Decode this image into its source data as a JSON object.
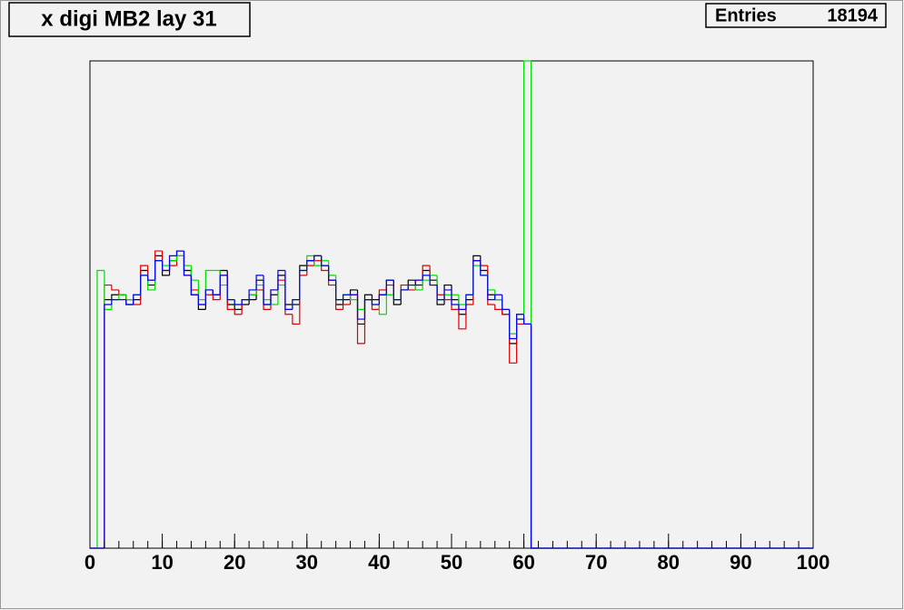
{
  "chart_data": {
    "type": "histogram",
    "title": "x digi MB2 lay 31",
    "stats": {
      "label": "Entries",
      "value": 18194
    },
    "bins": [
      0,
      1,
      2,
      3,
      4,
      5,
      6,
      7,
      8,
      9,
      10,
      11,
      12,
      13,
      14,
      15,
      16,
      17,
      18,
      19,
      20,
      21,
      22,
      23,
      24,
      25,
      26,
      27,
      28,
      29,
      30,
      31,
      32,
      33,
      34,
      35,
      36,
      37,
      38,
      39,
      40,
      41,
      42,
      43,
      44,
      45,
      46,
      47,
      48,
      49,
      50,
      51,
      52,
      53,
      54,
      55,
      56,
      57,
      58,
      59,
      60,
      61,
      62,
      63,
      64,
      65,
      66,
      67,
      68,
      69,
      70,
      71,
      72,
      73,
      74,
      75,
      76,
      77,
      78,
      79,
      80,
      81,
      82,
      83,
      84,
      85,
      86,
      87,
      88,
      89,
      90,
      91,
      92,
      93,
      94,
      95,
      96,
      97,
      98,
      99,
      100
    ],
    "xlim": [
      0,
      100
    ],
    "xticks": [
      0,
      10,
      20,
      30,
      40,
      50,
      60,
      70,
      80,
      90,
      100
    ],
    "ylim": [
      0,
      100
    ],
    "series": [
      {
        "name": "black",
        "color": "#000000",
        "values": [
          0,
          0,
          51,
          52,
          52,
          50,
          51,
          57,
          54,
          60,
          56,
          59,
          61,
          57,
          52,
          49,
          53,
          52,
          57,
          50,
          49,
          50,
          51,
          55,
          50,
          52,
          56,
          50,
          50,
          58,
          59,
          60,
          58,
          55,
          50,
          51,
          53,
          46,
          52,
          51,
          52,
          55,
          50,
          53,
          55,
          54,
          57,
          55,
          50,
          54,
          51,
          48,
          51,
          60,
          57,
          52,
          51,
          48,
          42,
          47,
          46,
          0,
          0,
          0,
          0,
          0,
          0,
          0,
          0,
          0,
          0,
          0,
          0,
          0,
          0,
          0,
          0,
          0,
          0,
          0,
          0,
          0,
          0,
          0,
          0,
          0,
          0,
          0,
          0,
          0,
          0,
          0,
          0,
          0,
          0,
          0,
          0,
          0,
          0,
          0
        ]
      },
      {
        "name": "red",
        "color": "#dd0000",
        "values": [
          0,
          0,
          54,
          53,
          52,
          51,
          50,
          58,
          55,
          61,
          57,
          58,
          60,
          56,
          53,
          50,
          52,
          51,
          56,
          49,
          48,
          51,
          52,
          53,
          49,
          53,
          55,
          48,
          46,
          56,
          58,
          59,
          57,
          54,
          49,
          50,
          52,
          42,
          51,
          49,
          53,
          54,
          51,
          54,
          53,
          55,
          58,
          54,
          52,
          51,
          49,
          45,
          50,
          59,
          58,
          50,
          49,
          48,
          38,
          46,
          46,
          0,
          0,
          0,
          0,
          0,
          0,
          0,
          0,
          0,
          0,
          0,
          0,
          0,
          0,
          0,
          0,
          0,
          0,
          0,
          0,
          0,
          0,
          0,
          0,
          0,
          0,
          0,
          0,
          0,
          0,
          0,
          0,
          0,
          0,
          0,
          0,
          0,
          0,
          0
        ]
      },
      {
        "name": "green",
        "color": "#00dd00",
        "values": [
          0,
          57,
          49,
          51,
          52,
          51,
          52,
          56,
          53,
          59,
          58,
          59,
          60,
          58,
          55,
          51,
          57,
          57,
          54,
          51,
          50,
          51,
          52,
          54,
          51,
          50,
          54,
          49,
          51,
          57,
          60,
          58,
          59,
          56,
          51,
          52,
          51,
          49,
          51,
          50,
          48,
          52,
          51,
          53,
          54,
          53,
          55,
          56,
          51,
          52,
          52,
          50,
          52,
          58,
          56,
          53,
          51,
          49,
          44,
          48,
          100,
          0,
          0,
          0,
          0,
          0,
          0,
          0,
          0,
          0,
          0,
          0,
          0,
          0,
          0,
          0,
          0,
          0,
          0,
          0,
          0,
          0,
          0,
          0,
          0,
          0,
          0,
          0,
          0,
          0,
          0,
          0,
          0,
          0,
          0,
          0,
          0,
          0,
          0,
          0
        ]
      },
      {
        "name": "blue",
        "color": "#0000ee",
        "values": [
          0,
          0,
          50,
          51,
          51,
          50,
          52,
          56,
          55,
          59,
          57,
          60,
          61,
          56,
          52,
          50,
          53,
          52,
          56,
          51,
          50,
          51,
          53,
          56,
          50,
          53,
          57,
          49,
          51,
          57,
          59,
          60,
          58,
          55,
          51,
          52,
          52,
          47,
          51,
          50,
          52,
          55,
          51,
          53,
          54,
          55,
          56,
          54,
          51,
          53,
          50,
          49,
          52,
          59,
          56,
          51,
          52,
          49,
          43,
          48,
          46,
          0,
          0,
          0,
          0,
          0,
          0,
          0,
          0,
          0,
          0,
          0,
          0,
          0,
          0,
          0,
          0,
          0,
          0,
          0,
          0,
          0,
          0,
          0,
          0,
          0,
          0,
          0,
          0,
          0,
          0,
          0,
          0,
          0,
          0,
          0,
          0,
          0,
          0,
          0
        ]
      }
    ]
  }
}
